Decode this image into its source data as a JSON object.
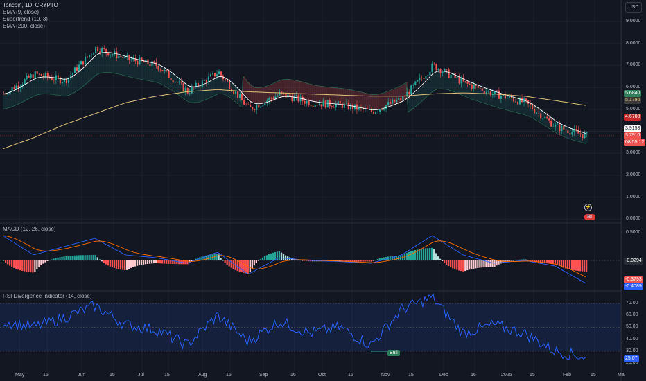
{
  "legend": {
    "symbol": "Toncoin, 1D, CRYPTO",
    "ind1": "EMA (9, close)",
    "ind2": "Supertrend (10, 3)",
    "ind3": "EMA (200, close)",
    "macd": "MACD (12, 26, close)",
    "rsi": "RSI Divergence Indicator (14, close)"
  },
  "currency": "USD",
  "price_axis": [
    "9.0000",
    "8.0000",
    "7.0000",
    "6.0000",
    "5.0000",
    "4.0000",
    "3.0000",
    "2.0000",
    "1.0000",
    "0.0000"
  ],
  "macd_axis": [
    "0.5000",
    "-0.0294"
  ],
  "rsi_axis": [
    "70.00",
    "60.00",
    "50.00",
    "40.00",
    "30.00",
    "20.00"
  ],
  "time_axis": [
    "May",
    "15",
    "Jun",
    "15",
    "Jul",
    "15",
    "Aug",
    "15",
    "Sep",
    "16",
    "Oct",
    "15",
    "Nov",
    "15",
    "Dec",
    "16",
    "2025",
    "15",
    "Feb",
    "15",
    "Ma"
  ],
  "tags": {
    "p1": "5.6840",
    "p2": "5.1796",
    "p3": "4.6708",
    "p4": "3.9153",
    "p5": "3.7910",
    "countdown": "08:55:12",
    "m1": "-0.0294",
    "m2": "-0.3793",
    "m3": "-0.4089",
    "r1": "25.07"
  },
  "bull_label": "Bull",
  "flash_icon": "⚡",
  "flag_icon": "🇺🇸",
  "colors": {
    "up": "#26a69a",
    "down": "#ef5350",
    "ema9": "#ffffff",
    "ema200": "#e0c27a",
    "macd": "#2962ff",
    "signal": "#ff6d00",
    "rsi": "#2962ff"
  },
  "chart_data": {
    "type": "line",
    "series": [
      {
        "name": "Toncoin, 1D, CRYPTO",
        "x": [
          "May 1",
          "May 15",
          "Jun 1",
          "Jun 15",
          "Jul 1",
          "Jul 15",
          "Aug 1",
          "Aug 15",
          "Sep 1",
          "Sep 16",
          "Oct 1",
          "Oct 15",
          "Nov 1",
          "Nov 15",
          "Dec 1",
          "Dec 16",
          "Jan 1",
          "Jan 15",
          "Feb 1",
          "Feb 8"
        ],
        "values": [
          5.7,
          6.6,
          6.3,
          7.8,
          7.3,
          7.0,
          5.8,
          6.7,
          5.0,
          5.7,
          5.3,
          5.2,
          4.9,
          5.5,
          7.0,
          6.2,
          5.7,
          5.3,
          4.2,
          3.79
        ]
      },
      {
        "name": "EMA (200, close)",
        "values": [
          3.2,
          3.7,
          4.3,
          4.8,
          5.3,
          5.6,
          5.8,
          5.9,
          5.8,
          5.75,
          5.7,
          5.65,
          5.6,
          5.6,
          5.7,
          5.75,
          5.7,
          5.6,
          5.4,
          5.18
        ]
      }
    ],
    "macd": {
      "values": [
        0.45,
        0.1,
        0.25,
        0.4,
        0.1,
        0.05,
        -0.05,
        0.15,
        -0.25,
        0.05,
        0.0,
        -0.02,
        -0.05,
        0.1,
        0.45,
        0.1,
        -0.05,
        0.0,
        -0.1,
        -0.41
      ]
    },
    "rsi": {
      "values": [
        55,
        50,
        58,
        68,
        52,
        48,
        35,
        60,
        38,
        55,
        45,
        50,
        35,
        65,
        75,
        45,
        52,
        45,
        30,
        25.07
      ]
    },
    "ylim": [
      0,
      9
    ]
  }
}
